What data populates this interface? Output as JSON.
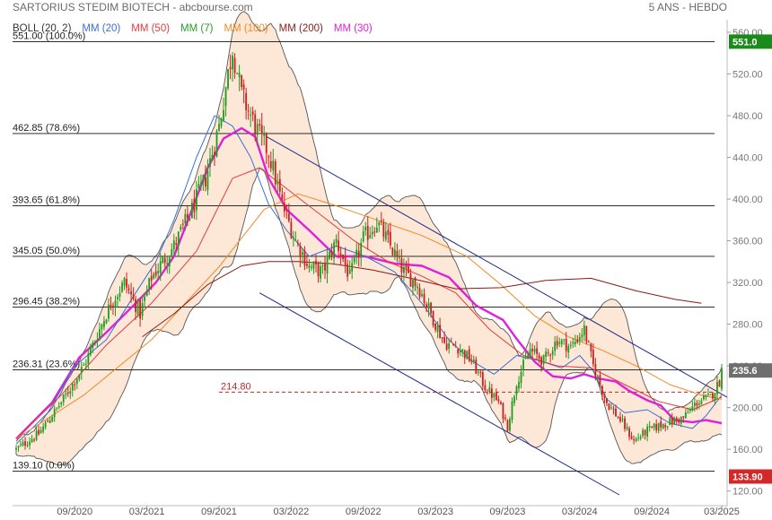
{
  "header": {
    "title": "SARTORIUS STEDIM BIOTECH - abcbourse.com",
    "period": "5 ANS - HEBDO"
  },
  "legend": [
    {
      "label": "BOLL (20, 2)",
      "color": "#333333"
    },
    {
      "label": "MM (20)",
      "color": "#3a6fd8"
    },
    {
      "label": "MM (50)",
      "color": "#e23b3b"
    },
    {
      "label": "MM (7)",
      "color": "#2a9a2a"
    },
    {
      "label": "MM (100)",
      "color": "#f08a24"
    },
    {
      "label": "MM (200)",
      "color": "#8b1a1a"
    },
    {
      "label": "MM (30)",
      "color": "#e020d8"
    }
  ],
  "chart_data": {
    "type": "candlestick",
    "title": "SARTORIUS STEDIM BIOTECH",
    "period": "5 ANS - HEBDO",
    "x_ticks": [
      "09/2020",
      "03/2021",
      "09/2021",
      "03/2022",
      "09/2022",
      "03/2023",
      "09/2023",
      "03/2024",
      "09/2024",
      "03/2025"
    ],
    "y_ticks": [
      120,
      160,
      200,
      240,
      280,
      320,
      360,
      400,
      440,
      480,
      520,
      560
    ],
    "ylim": [
      118,
      572
    ],
    "fibonacci_levels": [
      {
        "value": 551.0,
        "label": "551.00  (100.0%)"
      },
      {
        "value": 462.85,
        "label": "462.85  (78.6%)"
      },
      {
        "value": 393.65,
        "label": "393.65  (61.8%)"
      },
      {
        "value": 345.05,
        "label": "345.05  (50.0%)"
      },
      {
        "value": 296.45,
        "label": "296.45  (38.2%)"
      },
      {
        "value": 236.31,
        "label": "236.31  (23.6%)"
      },
      {
        "value": 139.1,
        "label": "139.10  (0.0%)"
      }
    ],
    "reference_line": {
      "value": 214.8,
      "label": "214.80",
      "color": "#c0282d"
    },
    "right_tags": [
      {
        "value": 551.0,
        "label": "551.0",
        "color": "#1a8a1a"
      },
      {
        "value": 235.6,
        "label": "235.6",
        "color": "#6e6e6e"
      },
      {
        "value": 133.9,
        "label": "133.90",
        "color": "#d42828"
      }
    ],
    "series": [
      {
        "name": "MM (30)",
        "color": "#e020d8",
        "points": [
          [
            0,
            170
          ],
          [
            16,
            205
          ],
          [
            28,
            248
          ],
          [
            40,
            272
          ],
          [
            53,
            300
          ],
          [
            62,
            320
          ],
          [
            70,
            345
          ],
          [
            78,
            390
          ],
          [
            85,
            430
          ],
          [
            92,
            458
          ],
          [
            100,
            468
          ],
          [
            106,
            460
          ],
          [
            112,
            420
          ],
          [
            120,
            390
          ],
          [
            130,
            370
          ],
          [
            142,
            345
          ],
          [
            155,
            345
          ],
          [
            168,
            338
          ],
          [
            180,
            336
          ],
          [
            192,
            325
          ],
          [
            204,
            298
          ],
          [
            216,
            284
          ],
          [
            222,
            266
          ],
          [
            230,
            244
          ],
          [
            238,
            230
          ],
          [
            246,
            228
          ],
          [
            252,
            232
          ],
          [
            258,
            228
          ],
          [
            266,
            225
          ],
          [
            272,
            216
          ],
          [
            280,
            207
          ],
          [
            286,
            202
          ],
          [
            292,
            188
          ],
          [
            300,
            186
          ],
          [
            306,
            188
          ],
          [
            313,
            185
          ]
        ]
      },
      {
        "name": "MM (20)",
        "color": "#3a6fd8",
        "points": [
          [
            0,
            165
          ],
          [
            14,
            195
          ],
          [
            26,
            240
          ],
          [
            40,
            265
          ],
          [
            53,
            310
          ],
          [
            62,
            340
          ],
          [
            70,
            380
          ],
          [
            80,
            440
          ],
          [
            88,
            480
          ],
          [
            96,
            470
          ],
          [
            104,
            440
          ],
          [
            112,
            395
          ],
          [
            120,
            370
          ],
          [
            130,
            345
          ],
          [
            142,
            355
          ],
          [
            155,
            345
          ],
          [
            168,
            330
          ],
          [
            180,
            300
          ],
          [
            192,
            265
          ],
          [
            202,
            245
          ],
          [
            212,
            232
          ],
          [
            222,
            250
          ],
          [
            232,
            245
          ],
          [
            242,
            238
          ],
          [
            250,
            250
          ],
          [
            256,
            235
          ],
          [
            262,
            208
          ],
          [
            270,
            195
          ],
          [
            280,
            198
          ],
          [
            290,
            185
          ],
          [
            300,
            180
          ],
          [
            306,
            192
          ],
          [
            313,
            212
          ]
        ]
      },
      {
        "name": "MM (50)",
        "color": "#e23b3b",
        "points": [
          [
            0,
            170
          ],
          [
            20,
            212
          ],
          [
            40,
            260
          ],
          [
            60,
            300
          ],
          [
            80,
            350
          ],
          [
            96,
            420
          ],
          [
            108,
            430
          ],
          [
            120,
            410
          ],
          [
            135,
            385
          ],
          [
            150,
            360
          ],
          [
            165,
            340
          ],
          [
            180,
            326
          ],
          [
            195,
            310
          ],
          [
            210,
            275
          ],
          [
            225,
            250
          ],
          [
            240,
            240
          ],
          [
            255,
            238
          ],
          [
            270,
            222
          ],
          [
            285,
            206
          ],
          [
            300,
            198
          ],
          [
            313,
            210
          ]
        ]
      },
      {
        "name": "MM (100)",
        "color": "#f08a24",
        "points": [
          [
            0,
            170
          ],
          [
            30,
            212
          ],
          [
            60,
            265
          ],
          [
            90,
            335
          ],
          [
            110,
            390
          ],
          [
            125,
            405
          ],
          [
            140,
            395
          ],
          [
            160,
            380
          ],
          [
            180,
            365
          ],
          [
            200,
            345
          ],
          [
            215,
            318
          ],
          [
            230,
            288
          ],
          [
            245,
            268
          ],
          [
            260,
            255
          ],
          [
            275,
            240
          ],
          [
            290,
            222
          ],
          [
            304,
            212
          ],
          [
            313,
            208
          ]
        ]
      },
      {
        "name": "MM (200)",
        "color": "#8b1a1a",
        "points": [
          [
            56,
            268
          ],
          [
            70,
            290
          ],
          [
            85,
            318
          ],
          [
            100,
            336
          ],
          [
            112,
            340
          ],
          [
            125,
            340
          ],
          [
            140,
            338
          ],
          [
            158,
            332
          ],
          [
            175,
            324
          ],
          [
            195,
            314
          ],
          [
            215,
            315
          ],
          [
            235,
            322
          ],
          [
            255,
            324
          ],
          [
            275,
            312
          ],
          [
            292,
            304
          ],
          [
            304,
            300
          ]
        ]
      }
    ]
  }
}
